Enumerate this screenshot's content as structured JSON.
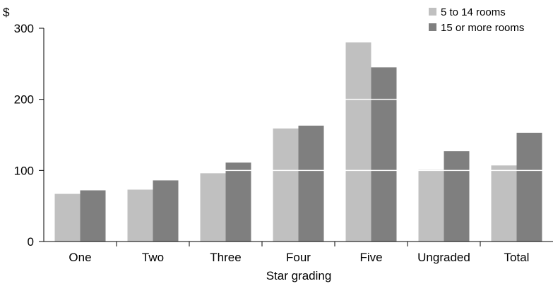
{
  "chart_data": {
    "type": "bar",
    "unit_label": "$",
    "xlabel": "Star grading",
    "categories": [
      "One",
      "Two",
      "Three",
      "Four",
      "Five",
      "Ungraded",
      "Total"
    ],
    "series": [
      {
        "name": "5 to 14 rooms",
        "color": "#c0c0c0",
        "values": [
          67,
          73,
          96,
          159,
          280,
          101,
          107
        ]
      },
      {
        "name": "15 or more rooms",
        "color": "#7f7f7f",
        "values": [
          72,
          86,
          111,
          163,
          245,
          127,
          153
        ]
      }
    ],
    "ylim": [
      0,
      300
    ],
    "yticks": [
      0,
      100,
      200,
      300
    ],
    "grid": "white lines across bars at y-ticks",
    "legend_position": "top-right"
  }
}
